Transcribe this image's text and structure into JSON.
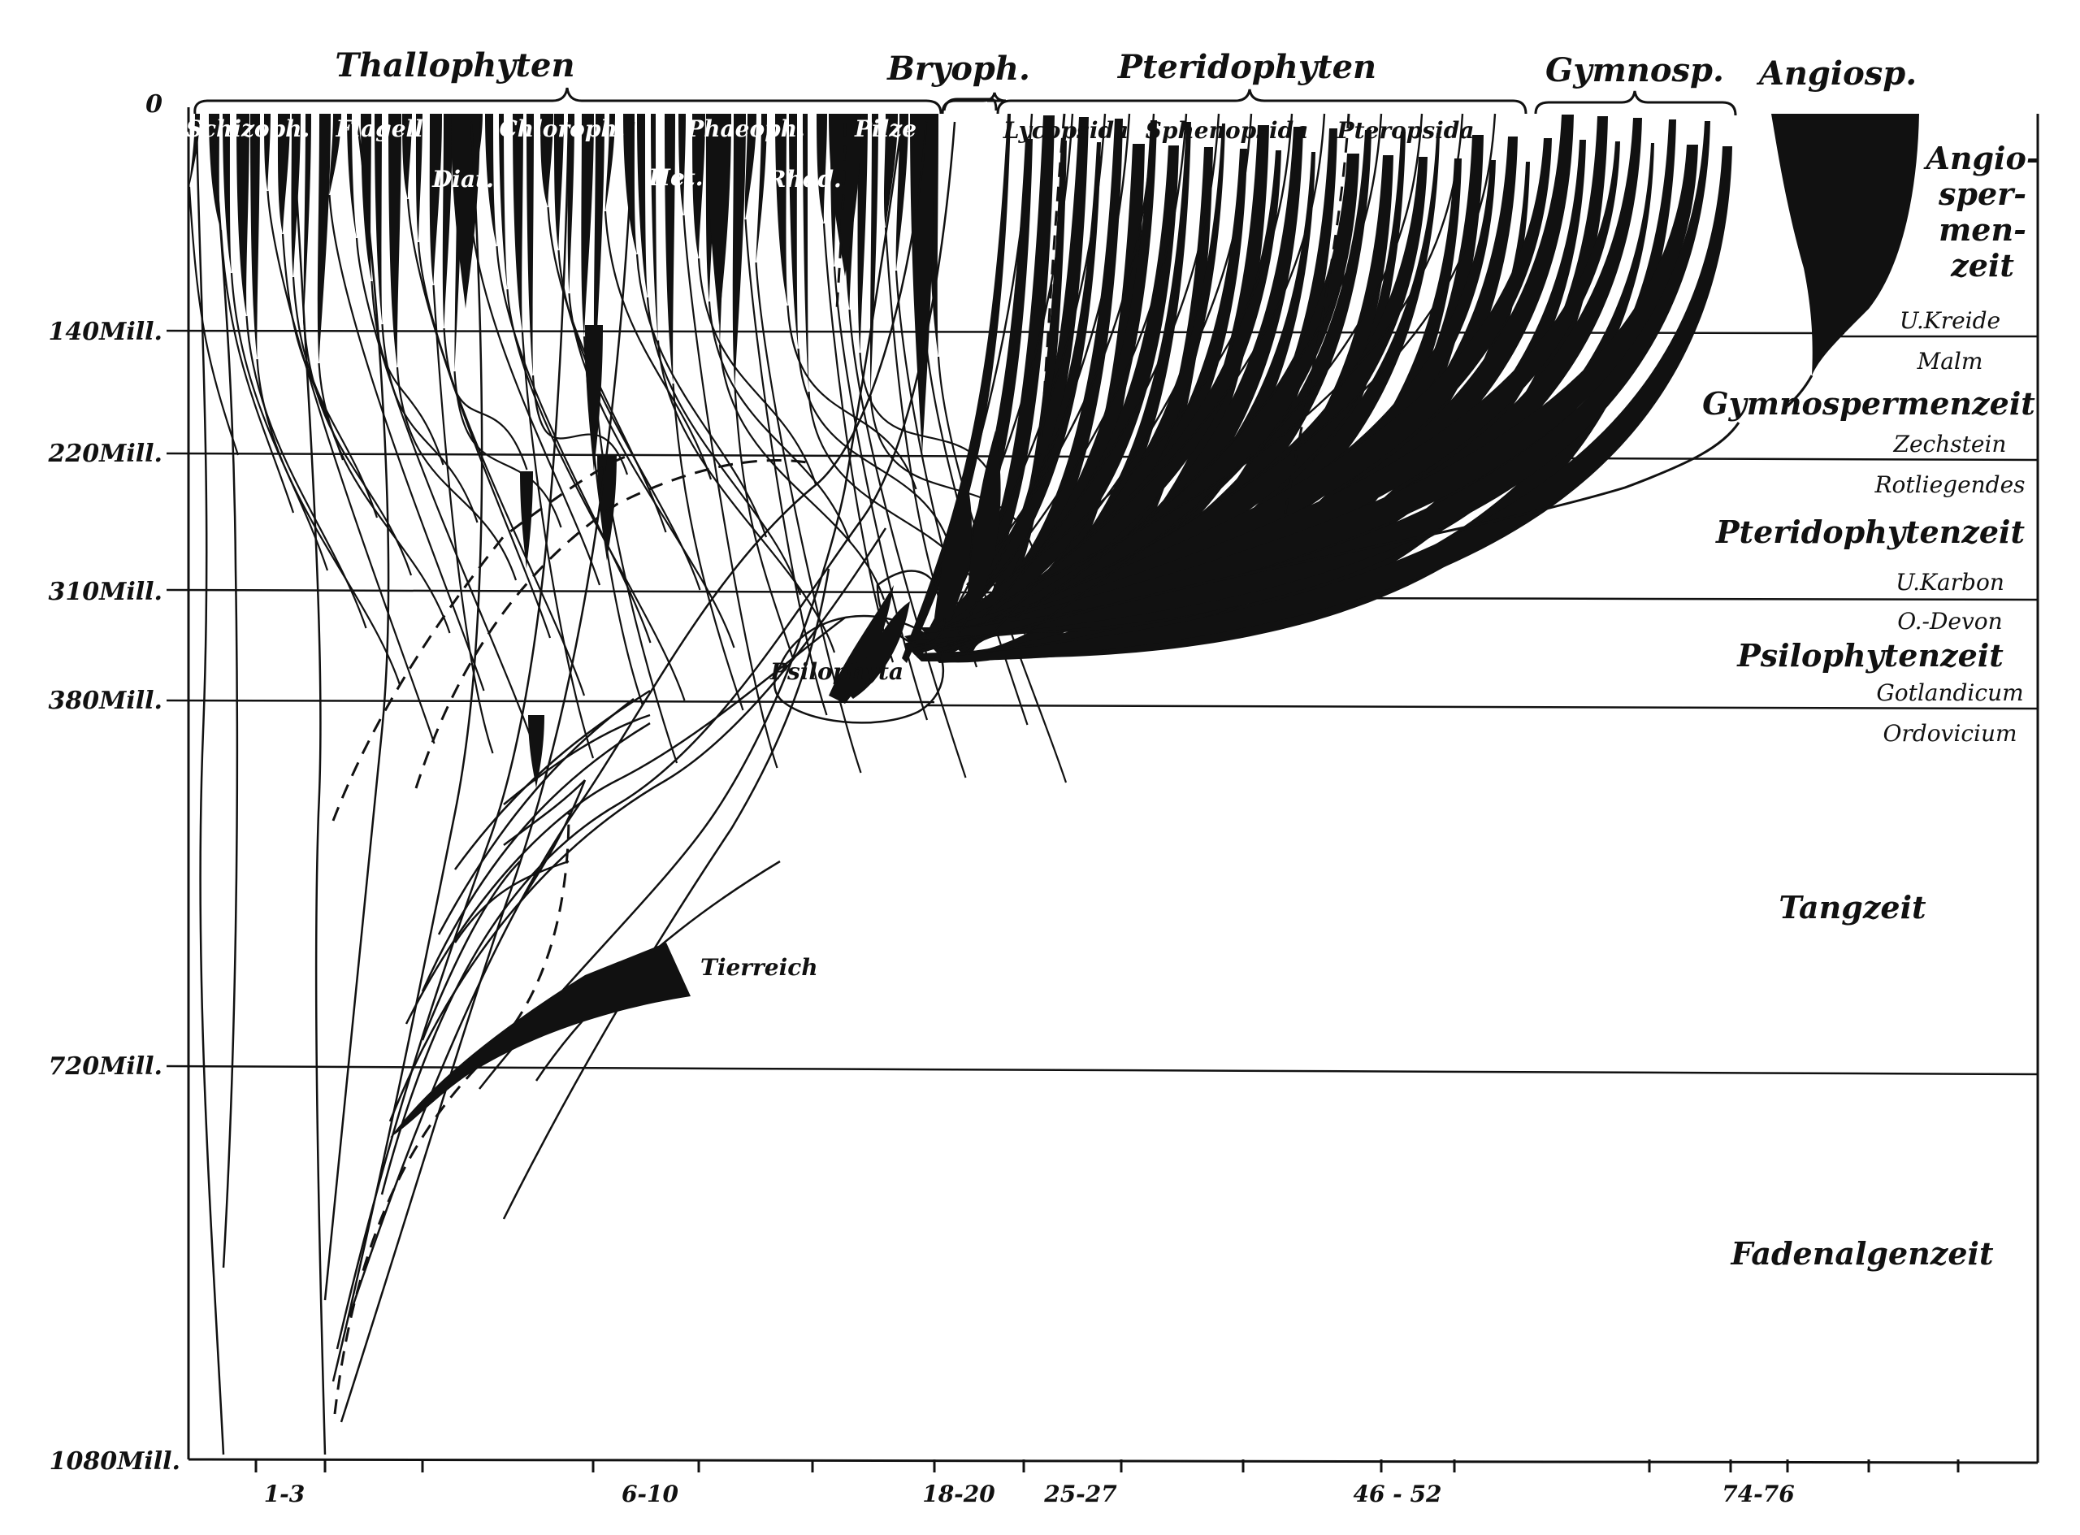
{
  "groups": {
    "thallophyten": "Thallophyten",
    "bryoph": "Bryoph.",
    "pteridophyten": "Pteridophyten",
    "gymnosp": "Gymnosp.",
    "angiosp": "Angiosp."
  },
  "subgroups": {
    "schizoph": "Schizoph.",
    "flagell": "Flagell.",
    "chloroph": "Chloroph.",
    "phaeoph": "Phaeoph.",
    "pilze": "Pilze",
    "diat": "Diat.",
    "het": "Het.",
    "rhod": "Rhod.",
    "lycopsida": "Lycopsida",
    "sphenopsida": "Sphenopsida",
    "pteropsida": "Pteropsida"
  },
  "time_axis": {
    "t0": "0",
    "t140": "140Mill.",
    "t220": "220Mill.",
    "t310": "310Mill.",
    "t380": "380Mill.",
    "t720": "720Mill.",
    "t1080": "1080Mill."
  },
  "eras": {
    "angio_1": "Angio-",
    "angio_2": "sper-",
    "angio_3": "men-",
    "angio_4": "zeit",
    "gymno": "Gymnospermenzeit",
    "pterido": "Pteridophytenzeit",
    "psilo": "Psilophytenzeit",
    "tang": "Tangzeit",
    "faden": "Fadenalgenzeit"
  },
  "stages": {
    "u_kreide": "U.Kreide",
    "malm": "Malm",
    "zechstein": "Zechstein",
    "rotliegendes": "Rotliegendes",
    "u_karbon": "U.Karbon",
    "o_devon": "O.-Devon",
    "gotlandicum": "Gotlandicum",
    "ordovicium": "Ordovicium"
  },
  "other_labels": {
    "psilophyta": "Psilophyta",
    "tierreich": "Tierreich"
  },
  "x_ticks": {
    "a": "1-3",
    "b": "6-10",
    "c": "18-20",
    "d": "25-27",
    "e": "46 - 52",
    "f": "74-76"
  }
}
